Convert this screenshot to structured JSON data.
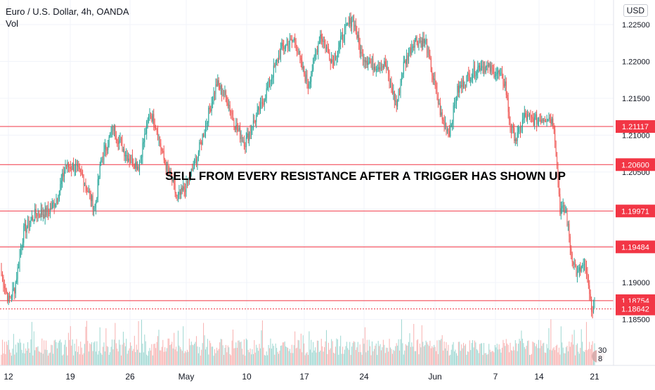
{
  "header": {
    "symbol_line": "Euro / U.S. Dollar, 4h, OANDA",
    "volume_label": "Vol",
    "currency": "USD"
  },
  "badge": {
    "text": "30 8"
  },
  "chart_data": {
    "type": "candlestick",
    "symbol": "EURUSD",
    "interval": "4h",
    "source": "OANDA",
    "annotation": "SELL FROM EVERY RESISTANCE AFTER A TRIGGER HAS SHOWN UP",
    "y_axis": {
      "range": [
        1.18,
        1.227
      ],
      "ticks": [
        {
          "value": 1.185,
          "label": "1.18500"
        },
        {
          "value": 1.19,
          "label": "1.19000"
        },
        {
          "value": 1.195,
          "label": "1.19500"
        },
        {
          "value": 1.2,
          "label": "1.20000"
        },
        {
          "value": 1.205,
          "label": "1.20500"
        },
        {
          "value": 1.21,
          "label": "1.21000"
        },
        {
          "value": 1.215,
          "label": "1.21500"
        },
        {
          "value": 1.22,
          "label": "1.22000"
        },
        {
          "value": 1.225,
          "label": "1.22500"
        }
      ]
    },
    "x_axis": {
      "ticks": [
        "12",
        "19",
        "26",
        "May",
        "10",
        "17",
        "24",
        "Jun",
        "7",
        "14",
        "21"
      ]
    },
    "levels": [
      {
        "value": 1.21117,
        "label": "1.21117",
        "style": "solid"
      },
      {
        "value": 1.206,
        "label": "1.20600",
        "style": "solid"
      },
      {
        "value": 1.19971,
        "label": "1.19971",
        "style": "solid"
      },
      {
        "value": 1.19484,
        "label": "1.19484",
        "style": "solid"
      },
      {
        "value": 1.18754,
        "label": "1.18754",
        "style": "solid"
      },
      {
        "value": 1.18642,
        "label": "1.18642",
        "style": "dotted"
      }
    ],
    "key_path": [
      [
        0,
        1.1912
      ],
      [
        7,
        1.1876
      ],
      [
        13,
        1.1892
      ],
      [
        22,
        1.197
      ],
      [
        34,
        1.1994
      ],
      [
        46,
        1.1995
      ],
      [
        55,
        1.2015
      ],
      [
        63,
        1.2057
      ],
      [
        71,
        1.2058
      ],
      [
        80,
        1.2043
      ],
      [
        92,
        1.2
      ],
      [
        98,
        1.2065
      ],
      [
        110,
        1.211
      ],
      [
        123,
        1.2073
      ],
      [
        135,
        1.2058
      ],
      [
        146,
        1.2131
      ],
      [
        152,
        1.2114
      ],
      [
        160,
        1.2066
      ],
      [
        168,
        1.2038
      ],
      [
        173,
        1.2012
      ],
      [
        183,
        1.2034
      ],
      [
        193,
        1.2072
      ],
      [
        205,
        1.2135
      ],
      [
        212,
        1.217
      ],
      [
        222,
        1.215
      ],
      [
        231,
        1.211
      ],
      [
        240,
        1.209
      ],
      [
        246,
        1.211
      ],
      [
        256,
        1.214
      ],
      [
        266,
        1.218
      ],
      [
        276,
        1.2218
      ],
      [
        289,
        1.223
      ],
      [
        295,
        1.2195
      ],
      [
        302,
        1.2168
      ],
      [
        314,
        1.2237
      ],
      [
        326,
        1.22
      ],
      [
        338,
        1.224
      ],
      [
        346,
        1.226
      ],
      [
        354,
        1.221
      ],
      [
        366,
        1.2195
      ],
      [
        378,
        1.2195
      ],
      [
        389,
        1.214
      ],
      [
        396,
        1.2195
      ],
      [
        407,
        1.223
      ],
      [
        418,
        1.2225
      ],
      [
        426,
        1.217
      ],
      [
        434,
        1.212
      ],
      [
        441,
        1.2105
      ],
      [
        449,
        1.216
      ],
      [
        460,
        1.218
      ],
      [
        472,
        1.2195
      ],
      [
        488,
        1.2185
      ],
      [
        496,
        1.217
      ],
      [
        501,
        1.211
      ],
      [
        507,
        1.2095
      ],
      [
        515,
        1.2125
      ],
      [
        525,
        1.212
      ],
      [
        535,
        1.2125
      ],
      [
        540,
        1.2124
      ],
      [
        544,
        1.2115
      ],
      [
        547,
        1.206
      ],
      [
        550,
        1.2
      ],
      [
        556,
        1.1995
      ],
      [
        561,
        1.194
      ],
      [
        567,
        1.191
      ],
      [
        572,
        1.1922
      ],
      [
        576,
        1.1915
      ],
      [
        580,
        1.187
      ],
      [
        584,
        1.1864
      ]
    ],
    "volume_scale_max": 100
  }
}
